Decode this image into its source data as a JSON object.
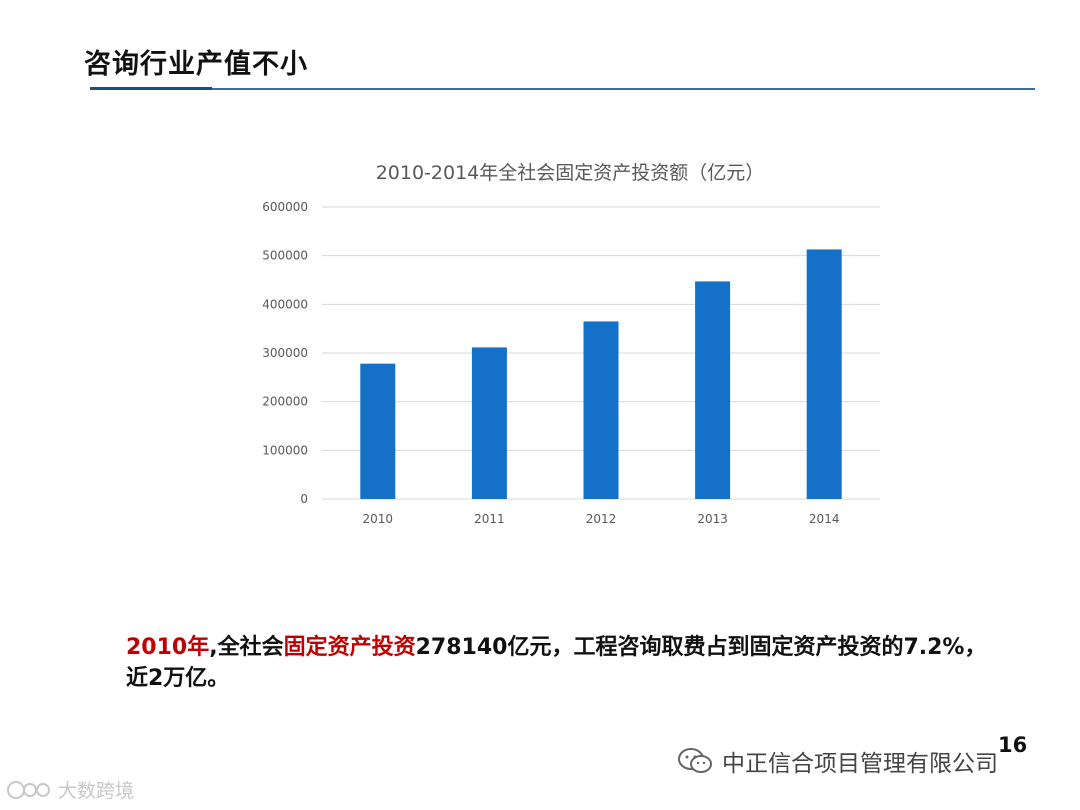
{
  "slide": {
    "title": "咨询行业产值不小",
    "page_number": "16"
  },
  "chart_data": {
    "type": "bar",
    "title": "2010-2014年全社会固定资产投资额（亿元）",
    "categories": [
      "2010",
      "2011",
      "2012",
      "2013",
      "2014"
    ],
    "values": [
      278140,
      311485,
      364835,
      447074,
      512761
    ],
    "ylim": [
      0,
      600000
    ],
    "yticks": [
      "0",
      "100000",
      "200000",
      "300000",
      "400000",
      "500000",
      "600000"
    ],
    "xlabel": "",
    "ylabel": "",
    "grid": true,
    "bar_color": "#1570c8"
  },
  "caption": {
    "year": "2010年",
    "text1": ",全社会",
    "highlight": "固定资产投资",
    "text2": "278140亿元，工程咨询取费占到固定资产投资的7.2%，近2万亿。"
  },
  "watermark": {
    "wechat_text": "中正信合项目管理有限公司",
    "corner_text": "大数跨境"
  },
  "colors": {
    "accent_red": "#c00000",
    "rule": "#3c6d9c"
  }
}
